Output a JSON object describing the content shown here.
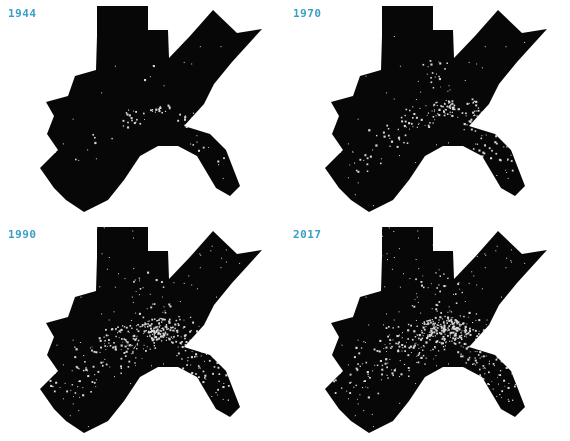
{
  "panels": [
    {
      "year": "1944",
      "density": 0.12
    },
    {
      "year": "1970",
      "density": 0.35
    },
    {
      "year": "1990",
      "density": 0.65
    },
    {
      "year": "2017",
      "density": 0.85
    }
  ],
  "colors": {
    "label": "#3a9ec5",
    "land": "#070707",
    "urban": "#d8d8d8",
    "background": "#ffffff"
  }
}
